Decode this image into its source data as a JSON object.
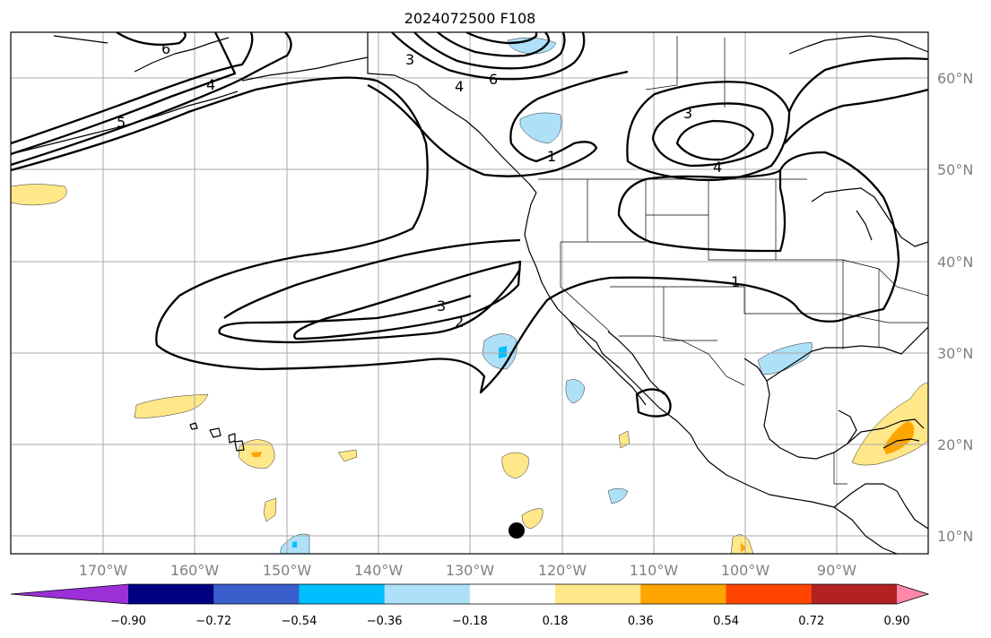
{
  "title": "2024072500 F108",
  "lat_labels": [
    "60°N",
    "50°N",
    "40°N",
    "30°N",
    "20°N",
    "10°N"
  ],
  "lon_labels": [
    "170°W",
    "160°W",
    "150°W",
    "140°W",
    "130°W",
    "120°W",
    "110°W",
    "100°W",
    "90°W"
  ],
  "colorbar": {
    "tick_labels": [
      "−0.90",
      "−0.72",
      "−0.54",
      "−0.36",
      "−0.18",
      "0.18",
      "0.36",
      "0.54",
      "0.72",
      "0.90"
    ],
    "colors": [
      "#9b30d8",
      "#000080",
      "#3a5fcd",
      "#00bfff",
      "#aee0f8",
      "#ffffff",
      "#ffe78a",
      "#ffa500",
      "#ff4500",
      "#b22222",
      "#ff88aa"
    ]
  },
  "contour_labels": [
    "3",
    "4",
    "6",
    "3",
    "4",
    "1",
    "3",
    "2",
    "1",
    "6",
    "4",
    "5"
  ],
  "marker": "storm-position-dot"
}
